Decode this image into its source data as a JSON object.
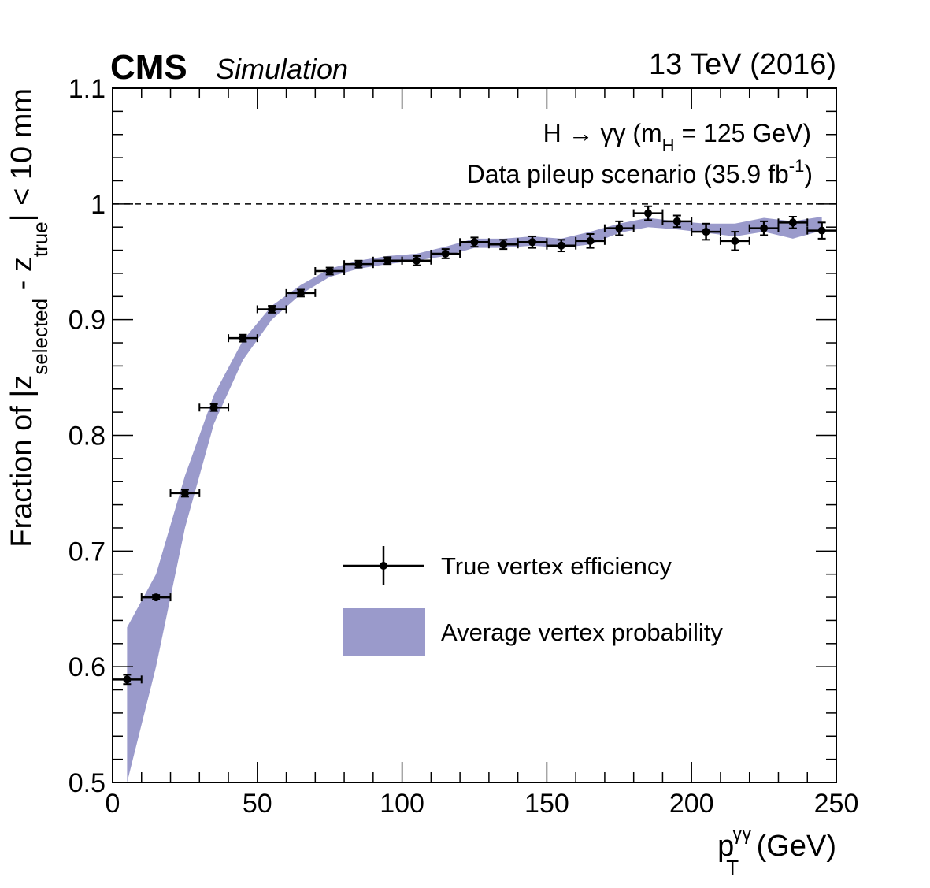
{
  "header": {
    "experiment": "CMS",
    "status": "Simulation",
    "energy": "13 TeV (2016)"
  },
  "annotation": {
    "line1": {
      "prefix": "H → γγ (m",
      "sub": "H",
      "suffix": " = 125 GeV)"
    },
    "line2": {
      "prefix": "Data pileup scenario (35.9 fb",
      "sup": "-1",
      "suffix": ")"
    }
  },
  "chart_data": {
    "type": "scatter",
    "xlabel": {
      "main": "p",
      "sub": "T",
      "sup": "γγ",
      "unit": " (GeV)"
    },
    "ylabel": {
      "a": "Fraction of |z",
      "sub1": "selected",
      "b": " - z",
      "sub2": "true",
      "c": "| < 10 mm"
    },
    "xlim": [
      0,
      250
    ],
    "ylim": [
      0.5,
      1.1
    ],
    "x_ticks": [
      0,
      50,
      100,
      150,
      200,
      250
    ],
    "y_ticks": [
      0.5,
      0.6,
      0.7,
      0.8,
      0.9,
      1,
      1.1
    ],
    "x_tick_labels": [
      "0",
      "50",
      "100",
      "150",
      "200",
      "250"
    ],
    "y_tick_labels": [
      "0.5",
      "0.6",
      "0.7",
      "0.8",
      "0.9",
      "1",
      "1.1"
    ],
    "reference_line": {
      "y": 1.0,
      "style": "dashed"
    },
    "grid": false,
    "legend_position": "center-right",
    "series": [
      {
        "name": "True vertex efficiency",
        "style": "points-with-errors",
        "color": "#000000",
        "x": [
          5,
          15,
          25,
          35,
          45,
          55,
          65,
          75,
          85,
          95,
          105,
          115,
          125,
          135,
          145,
          155,
          165,
          175,
          185,
          195,
          205,
          215,
          225,
          235,
          245
        ],
        "y": [
          0.589,
          0.66,
          0.75,
          0.824,
          0.884,
          0.909,
          0.923,
          0.942,
          0.948,
          0.951,
          0.951,
          0.957,
          0.967,
          0.965,
          0.967,
          0.964,
          0.968,
          0.979,
          0.992,
          0.985,
          0.976,
          0.968,
          0.979,
          0.984,
          0.977
        ],
        "y_err": [
          0.004,
          0.002,
          0.003,
          0.003,
          0.003,
          0.003,
          0.003,
          0.003,
          0.003,
          0.003,
          0.004,
          0.004,
          0.004,
          0.004,
          0.005,
          0.005,
          0.006,
          0.006,
          0.006,
          0.005,
          0.007,
          0.008,
          0.006,
          0.005,
          0.007
        ],
        "x_err": 5
      },
      {
        "name": "Average vertex probability",
        "style": "band",
        "color": "#9a9acb",
        "x": [
          5,
          15,
          25,
          35,
          45,
          55,
          65,
          75,
          85,
          95,
          105,
          115,
          125,
          135,
          145,
          155,
          165,
          175,
          185,
          195,
          205,
          215,
          225,
          235,
          245
        ],
        "y_low": [
          0.5,
          0.6,
          0.72,
          0.81,
          0.865,
          0.9,
          0.922,
          0.937,
          0.944,
          0.948,
          0.951,
          0.955,
          0.962,
          0.962,
          0.964,
          0.962,
          0.965,
          0.975,
          0.98,
          0.978,
          0.975,
          0.972,
          0.976,
          0.97,
          0.977
        ],
        "y_high": [
          0.634,
          0.68,
          0.765,
          0.835,
          0.882,
          0.912,
          0.93,
          0.944,
          0.951,
          0.955,
          0.957,
          0.963,
          0.97,
          0.97,
          0.972,
          0.97,
          0.976,
          0.983,
          0.988,
          0.985,
          0.983,
          0.983,
          0.988,
          0.985,
          0.989
        ]
      }
    ]
  }
}
